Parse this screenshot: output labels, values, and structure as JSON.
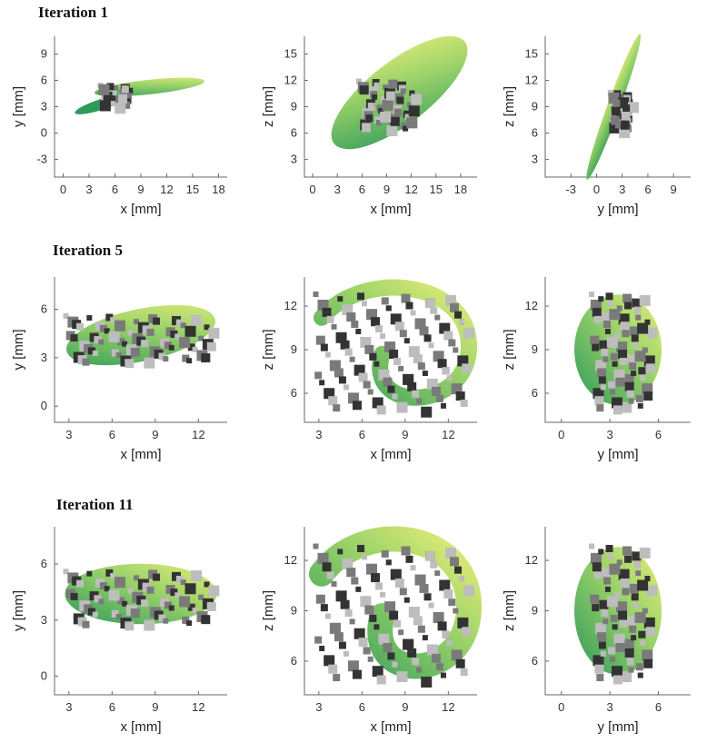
{
  "figure": {
    "rows": [
      {
        "title": "Iteration 1",
        "panels": [
          {
            "xlabel": "x [mm]",
            "ylabel": "y [mm]",
            "xticks": [
              "0",
              "3",
              "6",
              "9",
              "12",
              "15",
              "18"
            ],
            "yticks": [
              "9",
              "6",
              "3",
              "0",
              "-3"
            ],
            "xlim": [
              -1,
              19
            ],
            "ylim": [
              -5,
              11
            ]
          },
          {
            "xlabel": "x [mm]",
            "ylabel": "z [mm]",
            "xticks": [
              "0",
              "3",
              "6",
              "9",
              "12",
              "15",
              "18"
            ],
            "yticks": [
              "15",
              "12",
              "9",
              "6",
              "3"
            ],
            "xlim": [
              -1,
              20
            ],
            "ylim": [
              1,
              17
            ]
          },
          {
            "xlabel": "y [mm]",
            "ylabel": "z [mm]",
            "xticks": [
              "-3",
              "0",
              "3",
              "6",
              "9"
            ],
            "yticks": [
              "15",
              "12",
              "9",
              "6",
              "3"
            ],
            "xlim": [
              -6,
              11
            ],
            "ylim": [
              1,
              17
            ]
          }
        ]
      },
      {
        "title": "Iteration 5",
        "panels": [
          {
            "xlabel": "x [mm]",
            "ylabel": "y [mm]",
            "xticks": [
              "3",
              "6",
              "9",
              "12"
            ],
            "yticks": [
              "6",
              "3",
              "0"
            ],
            "xlim": [
              2,
              14
            ],
            "ylim": [
              -1,
              8
            ]
          },
          {
            "xlabel": "x [mm]",
            "ylabel": "z [mm]",
            "xticks": [
              "3",
              "6",
              "9",
              "12"
            ],
            "yticks": [
              "12",
              "9",
              "6"
            ],
            "xlim": [
              2,
              14
            ],
            "ylim": [
              4,
              14
            ]
          },
          {
            "xlabel": "y [mm]",
            "ylabel": "z [mm]",
            "xticks": [
              "0",
              "3",
              "6"
            ],
            "yticks": [
              "12",
              "9",
              "6"
            ],
            "xlim": [
              -1,
              8
            ],
            "ylim": [
              4,
              14
            ]
          }
        ]
      },
      {
        "title": "Iteration 11",
        "panels": [
          {
            "xlabel": "x [mm]",
            "ylabel": "y [mm]",
            "xticks": [
              "3",
              "6",
              "9",
              "12"
            ],
            "yticks": [
              "6",
              "3",
              "0"
            ],
            "xlim": [
              2,
              14
            ],
            "ylim": [
              -1,
              8
            ]
          },
          {
            "xlabel": "x [mm]",
            "ylabel": "z [mm]",
            "xticks": [
              "3",
              "6",
              "9",
              "12"
            ],
            "yticks": [
              "12",
              "9",
              "6"
            ],
            "xlim": [
              2,
              14
            ],
            "ylim": [
              4,
              14
            ]
          },
          {
            "xlabel": "y [mm]",
            "ylabel": "z [mm]",
            "xticks": [
              "0",
              "3",
              "6"
            ],
            "yticks": [
              "12",
              "9",
              "6"
            ],
            "xlim": [
              -1,
              8
            ],
            "ylim": [
              4,
              14
            ]
          }
        ]
      }
    ]
  },
  "colors": {
    "green_dark": "#2e9a5a",
    "green_light": "#e6ee78",
    "voxel_dark": "#333333",
    "voxel_light": "#bdbdbd"
  }
}
